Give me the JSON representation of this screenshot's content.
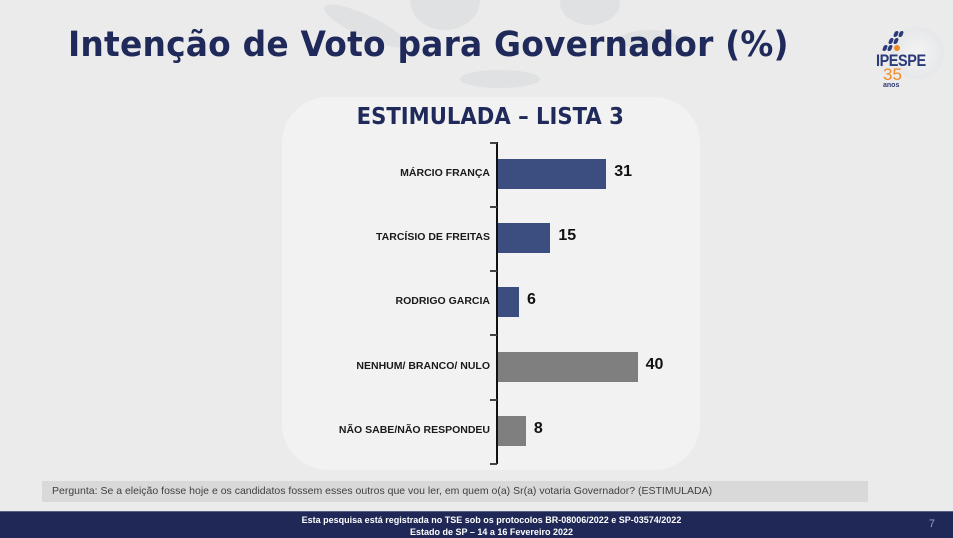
{
  "slide": {
    "title": "Intenção de Voto para Governador (%)",
    "subtitle": "ESTIMULADA – LISTA 3",
    "logo": {
      "brand": "IPESPE",
      "years": "35",
      "years_label": "anos"
    },
    "question": "Pergunta:  Se a eleição  fosse hoje e os candidatos fossem esses outros que vou ler, em quem o(a) Sr(a) votaria Governador? (ESTIMULADA)",
    "footer": {
      "line1": "Esta pesquisa está registrada no TSE sob os protocolos  BR-08006/2022 e SP-03574/2022",
      "line2": "Estado de SP – 14 a 16 Fevereiro 2022",
      "page_number": "7"
    },
    "colors": {
      "candidate_bar": "#3c4d80",
      "other_bar": "#7f7f7f",
      "title": "#1f2a5a",
      "footer_bg": "#1f2856",
      "logo_accent": "#f08a24"
    }
  },
  "chart_data": {
    "type": "bar",
    "orientation": "horizontal",
    "title": "ESTIMULADA – LISTA 3",
    "xlabel": "",
    "ylabel": "",
    "unit": "%",
    "categories": [
      "MÁRCIO FRANÇA",
      "TARCÍSIO DE FREITAS",
      "RODRIGO GARCIA",
      "NENHUM/ BRANCO/ NULO",
      "NÃO SABE/NÃO RESPONDEU"
    ],
    "values": [
      31,
      15,
      6,
      40,
      8
    ],
    "bar_colors": [
      "#3c4d80",
      "#3c4d80",
      "#3c4d80",
      "#7f7f7f",
      "#7f7f7f"
    ],
    "data_labels": [
      "31",
      "15",
      "6",
      "40",
      "8"
    ],
    "grid": false,
    "legend": "none"
  }
}
